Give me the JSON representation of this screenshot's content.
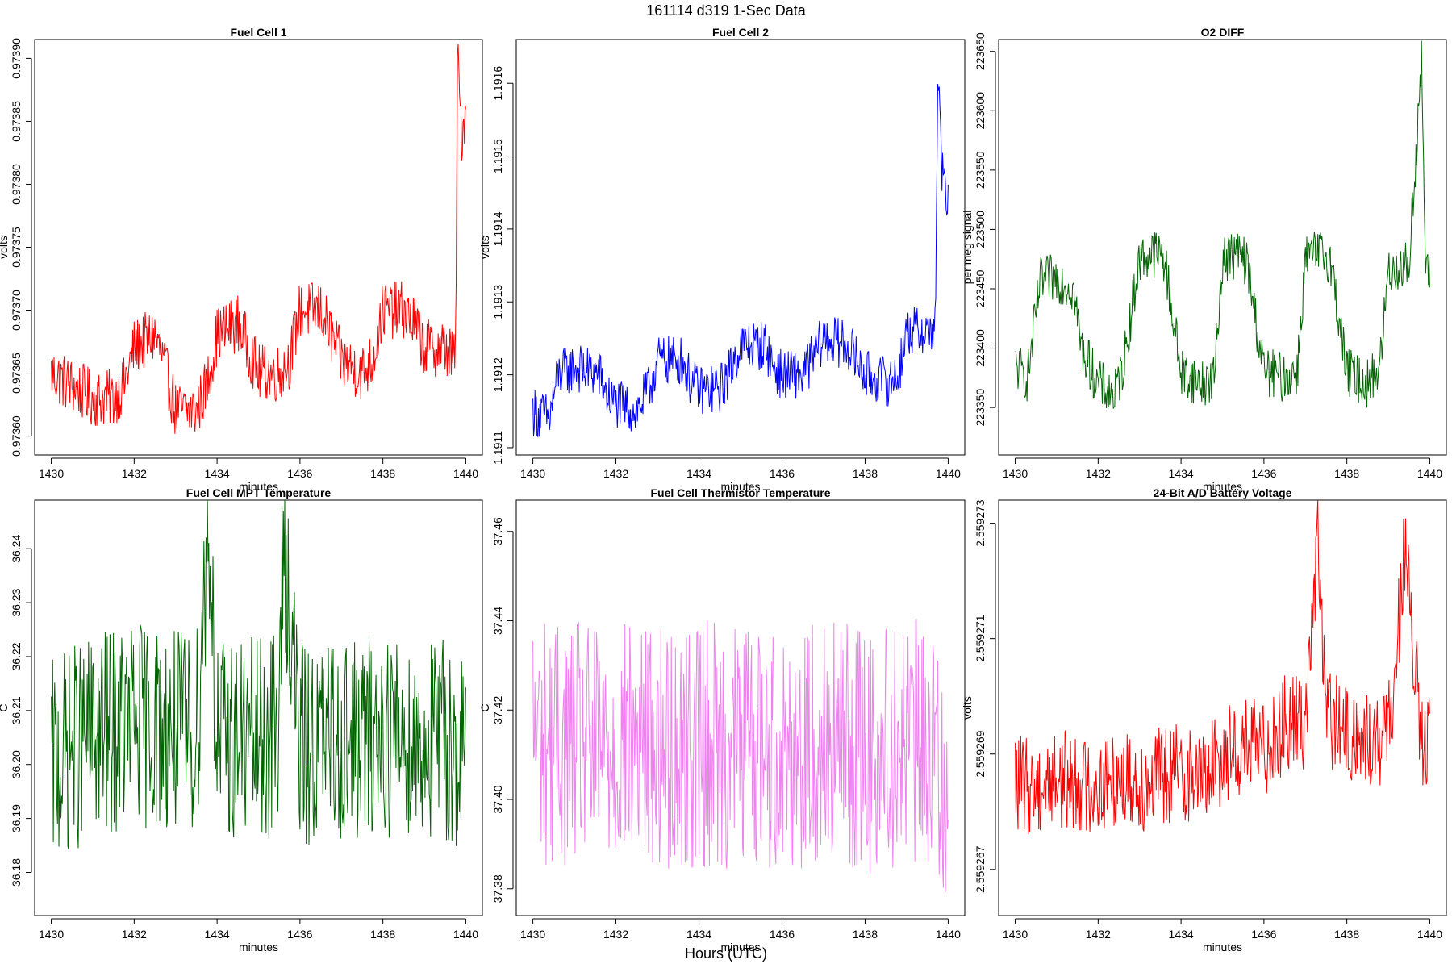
{
  "figure": {
    "title": "161114   d319   1-Sec Data",
    "common_xlabel": "Hours (UTC)"
  },
  "chart_data": [
    {
      "type": "line",
      "title": "Fuel Cell 1",
      "xlabel": "minutes",
      "ylabel": "volts",
      "color": "#ff0000",
      "xlim": [
        1429.6,
        1440.4
      ],
      "ylim": [
        0.973585,
        0.973915
      ],
      "xticks": [
        1430,
        1432,
        1434,
        1436,
        1438,
        1440
      ],
      "yticks": [
        "0.97360",
        "0.97365",
        "0.97370",
        "0.97375",
        "0.97380",
        "0.97385",
        "0.97390"
      ],
      "series": [
        {
          "x": [
            1430,
            1430.5,
            1431,
            1431.5,
            1431.75,
            1432,
            1432.5,
            1432.7,
            1433,
            1433.5,
            1433.75,
            1434,
            1434.5,
            1434.75,
            1435,
            1435.5,
            1435.75,
            1436,
            1436.5,
            1436.75,
            1437,
            1437.5,
            1437.75,
            1438,
            1438.5,
            1438.75,
            1439,
            1439.5,
            1439.75,
            1439.8,
            1439.9,
            1440
          ],
          "y": [
            0.97365,
            0.97364,
            0.97363,
            0.97363,
            0.97364,
            0.97367,
            0.97368,
            0.97366,
            0.97362,
            0.97362,
            0.97364,
            0.97368,
            0.97369,
            0.97367,
            0.97365,
            0.97365,
            0.97366,
            0.9737,
            0.9737,
            0.97368,
            0.97366,
            0.97365,
            0.97366,
            0.9737,
            0.9737,
            0.97369,
            0.97367,
            0.97367,
            0.97366,
            0.9739,
            0.97384,
            0.97386
          ]
        }
      ]
    },
    {
      "type": "line",
      "title": "Fuel Cell 2",
      "xlabel": "minutes",
      "ylabel": "volts",
      "color": "#0000ff",
      "xlim": [
        1429.6,
        1440.4
      ],
      "ylim": [
        1.19109,
        1.19166
      ],
      "xticks": [
        1430,
        1432,
        1434,
        1436,
        1438,
        1440
      ],
      "yticks": [
        "1.1911",
        "1.1912",
        "1.1913",
        "1.1914",
        "1.1915",
        "1.1916"
      ],
      "series": [
        {
          "x": [
            1430,
            1430.4,
            1430.6,
            1431,
            1431.6,
            1431.8,
            1432,
            1432.5,
            1432.8,
            1433,
            1433.6,
            1433.8,
            1434,
            1434.5,
            1434.7,
            1435,
            1435.6,
            1435.8,
            1436,
            1436.5,
            1436.8,
            1437,
            1437.6,
            1437.9,
            1438,
            1438.6,
            1438.8,
            1439,
            1439.6,
            1439.7,
            1439.75,
            1439.85,
            1440
          ],
          "y": [
            1.19115,
            1.19114,
            1.1912,
            1.19121,
            1.1912,
            1.19117,
            1.19116,
            1.19115,
            1.19118,
            1.19122,
            1.19122,
            1.19119,
            1.19118,
            1.19118,
            1.1912,
            1.19124,
            1.19124,
            1.19121,
            1.1912,
            1.1912,
            1.19123,
            1.19125,
            1.19124,
            1.19121,
            1.1912,
            1.19119,
            1.1912,
            1.19126,
            1.19126,
            1.19128,
            1.19162,
            1.19148,
            1.19143
          ]
        }
      ]
    },
    {
      "type": "line",
      "title": "O2 DIFF",
      "xlabel": "minutes",
      "ylabel": "per meg signal",
      "color": "#006400",
      "xlim": [
        1429.6,
        1440.4
      ],
      "ylim": [
        223310,
        223660
      ],
      "xticks": [
        1430,
        1432,
        1434,
        1436,
        1438,
        1440
      ],
      "yticks": [
        "223350",
        "223400",
        "223450",
        "223500",
        "223550",
        "223600",
        "223650"
      ],
      "series": [
        {
          "x": [
            1430,
            1430.3,
            1430.6,
            1431,
            1431.4,
            1431.6,
            1432,
            1432.4,
            1432.6,
            1433,
            1433.4,
            1433.6,
            1434,
            1434.5,
            1434.8,
            1435,
            1435.4,
            1435.6,
            1436,
            1436.5,
            1436.8,
            1437,
            1437.4,
            1437.6,
            1438,
            1438.5,
            1438.8,
            1439,
            1439.5,
            1439.8,
            1439.9,
            1440
          ],
          "y": [
            223385,
            223375,
            223455,
            223460,
            223450,
            223400,
            223370,
            223360,
            223385,
            223475,
            223480,
            223475,
            223380,
            223370,
            223375,
            223475,
            223480,
            223470,
            223380,
            223375,
            223380,
            223475,
            223480,
            223475,
            223380,
            223370,
            223385,
            223465,
            223470,
            223640,
            223470,
            223455
          ]
        }
      ]
    },
    {
      "type": "line",
      "title": "Fuel Cell MPT Temperature",
      "xlabel": "minutes",
      "ylabel": "C",
      "color": "#006400",
      "xlim": [
        1429.6,
        1440.4
      ],
      "ylim": [
        36.172,
        36.249
      ],
      "xticks": [
        1430,
        1432,
        1434,
        1436,
        1438,
        1440
      ],
      "yticks": [
        "36.18",
        "36.19",
        "36.20",
        "36.21",
        "36.22",
        "36.23",
        "36.24"
      ],
      "series": [
        {
          "x": [
            1430,
            1430.5,
            1431,
            1431.5,
            1432,
            1432.5,
            1433,
            1433.5,
            1433.8,
            1434,
            1434.5,
            1435,
            1435.5,
            1435.6,
            1436,
            1436.5,
            1437,
            1437.5,
            1438,
            1438.5,
            1439,
            1439.5,
            1440
          ],
          "y": [
            36.2,
            36.203,
            36.205,
            36.206,
            36.208,
            36.207,
            36.206,
            36.205,
            36.246,
            36.204,
            36.205,
            36.204,
            36.206,
            36.244,
            36.203,
            36.204,
            36.205,
            36.204,
            36.206,
            36.205,
            36.204,
            36.205,
            36.2
          ]
        }
      ]
    },
    {
      "type": "line",
      "title": "Fuel Cell Thermistor Temperature",
      "xlabel": "minutes",
      "ylabel": "C",
      "color": "#ee82ee",
      "xlim": [
        1429.6,
        1440.4
      ],
      "ylim": [
        37.374,
        37.467
      ],
      "xticks": [
        1430,
        1432,
        1434,
        1436,
        1438,
        1440
      ],
      "yticks": [
        "37.38",
        "37.40",
        "37.42",
        "37.44",
        "37.46"
      ],
      "series": [
        {
          "x": [
            1430,
            1430.5,
            1431,
            1431.5,
            1432,
            1432.5,
            1433,
            1433.5,
            1434,
            1434.5,
            1435,
            1435.5,
            1436,
            1436.5,
            1437,
            1437.5,
            1438,
            1438.5,
            1439,
            1439.5,
            1440
          ],
          "y": [
            37.415,
            37.412,
            37.413,
            37.411,
            37.412,
            37.413,
            37.412,
            37.411,
            37.413,
            37.412,
            37.413,
            37.412,
            37.411,
            37.412,
            37.413,
            37.412,
            37.411,
            37.412,
            37.413,
            37.412,
            37.405
          ]
        }
      ]
    },
    {
      "type": "line",
      "title": "24-Bit A/D Battery Voltage",
      "xlabel": "minutes",
      "ylabel": "volts",
      "color": "#ff0000",
      "xlim": [
        1429.6,
        1440.4
      ],
      "ylim": [
        2.5592662,
        2.5592734
      ],
      "xticks": [
        1430,
        1432,
        1434,
        1436,
        1438,
        1440
      ],
      "yticks": [
        "2.559267",
        "2.559269",
        "2.559271",
        "2.559273"
      ],
      "series": [
        {
          "x": [
            1430,
            1430.5,
            1431,
            1431.5,
            1432,
            1432.5,
            1433,
            1433.5,
            1434,
            1434.5,
            1434.8,
            1435,
            1435.5,
            1436,
            1436.3,
            1436.5,
            1437,
            1437.3,
            1437.5,
            1438,
            1438.5,
            1439,
            1439.4,
            1439.8,
            1440
          ],
          "y": [
            2.5592685,
            2.5592684,
            2.5592686,
            2.5592685,
            2.5592684,
            2.5592686,
            2.5592685,
            2.5592686,
            2.5592687,
            2.5592686,
            2.5592688,
            2.559269,
            2.5592691,
            2.5592691,
            2.5592694,
            2.5592695,
            2.5592696,
            2.5592727,
            2.5592697,
            2.5592693,
            2.5592692,
            2.5592693,
            2.5592725,
            2.5592691,
            2.5592692
          ]
        }
      ]
    }
  ]
}
